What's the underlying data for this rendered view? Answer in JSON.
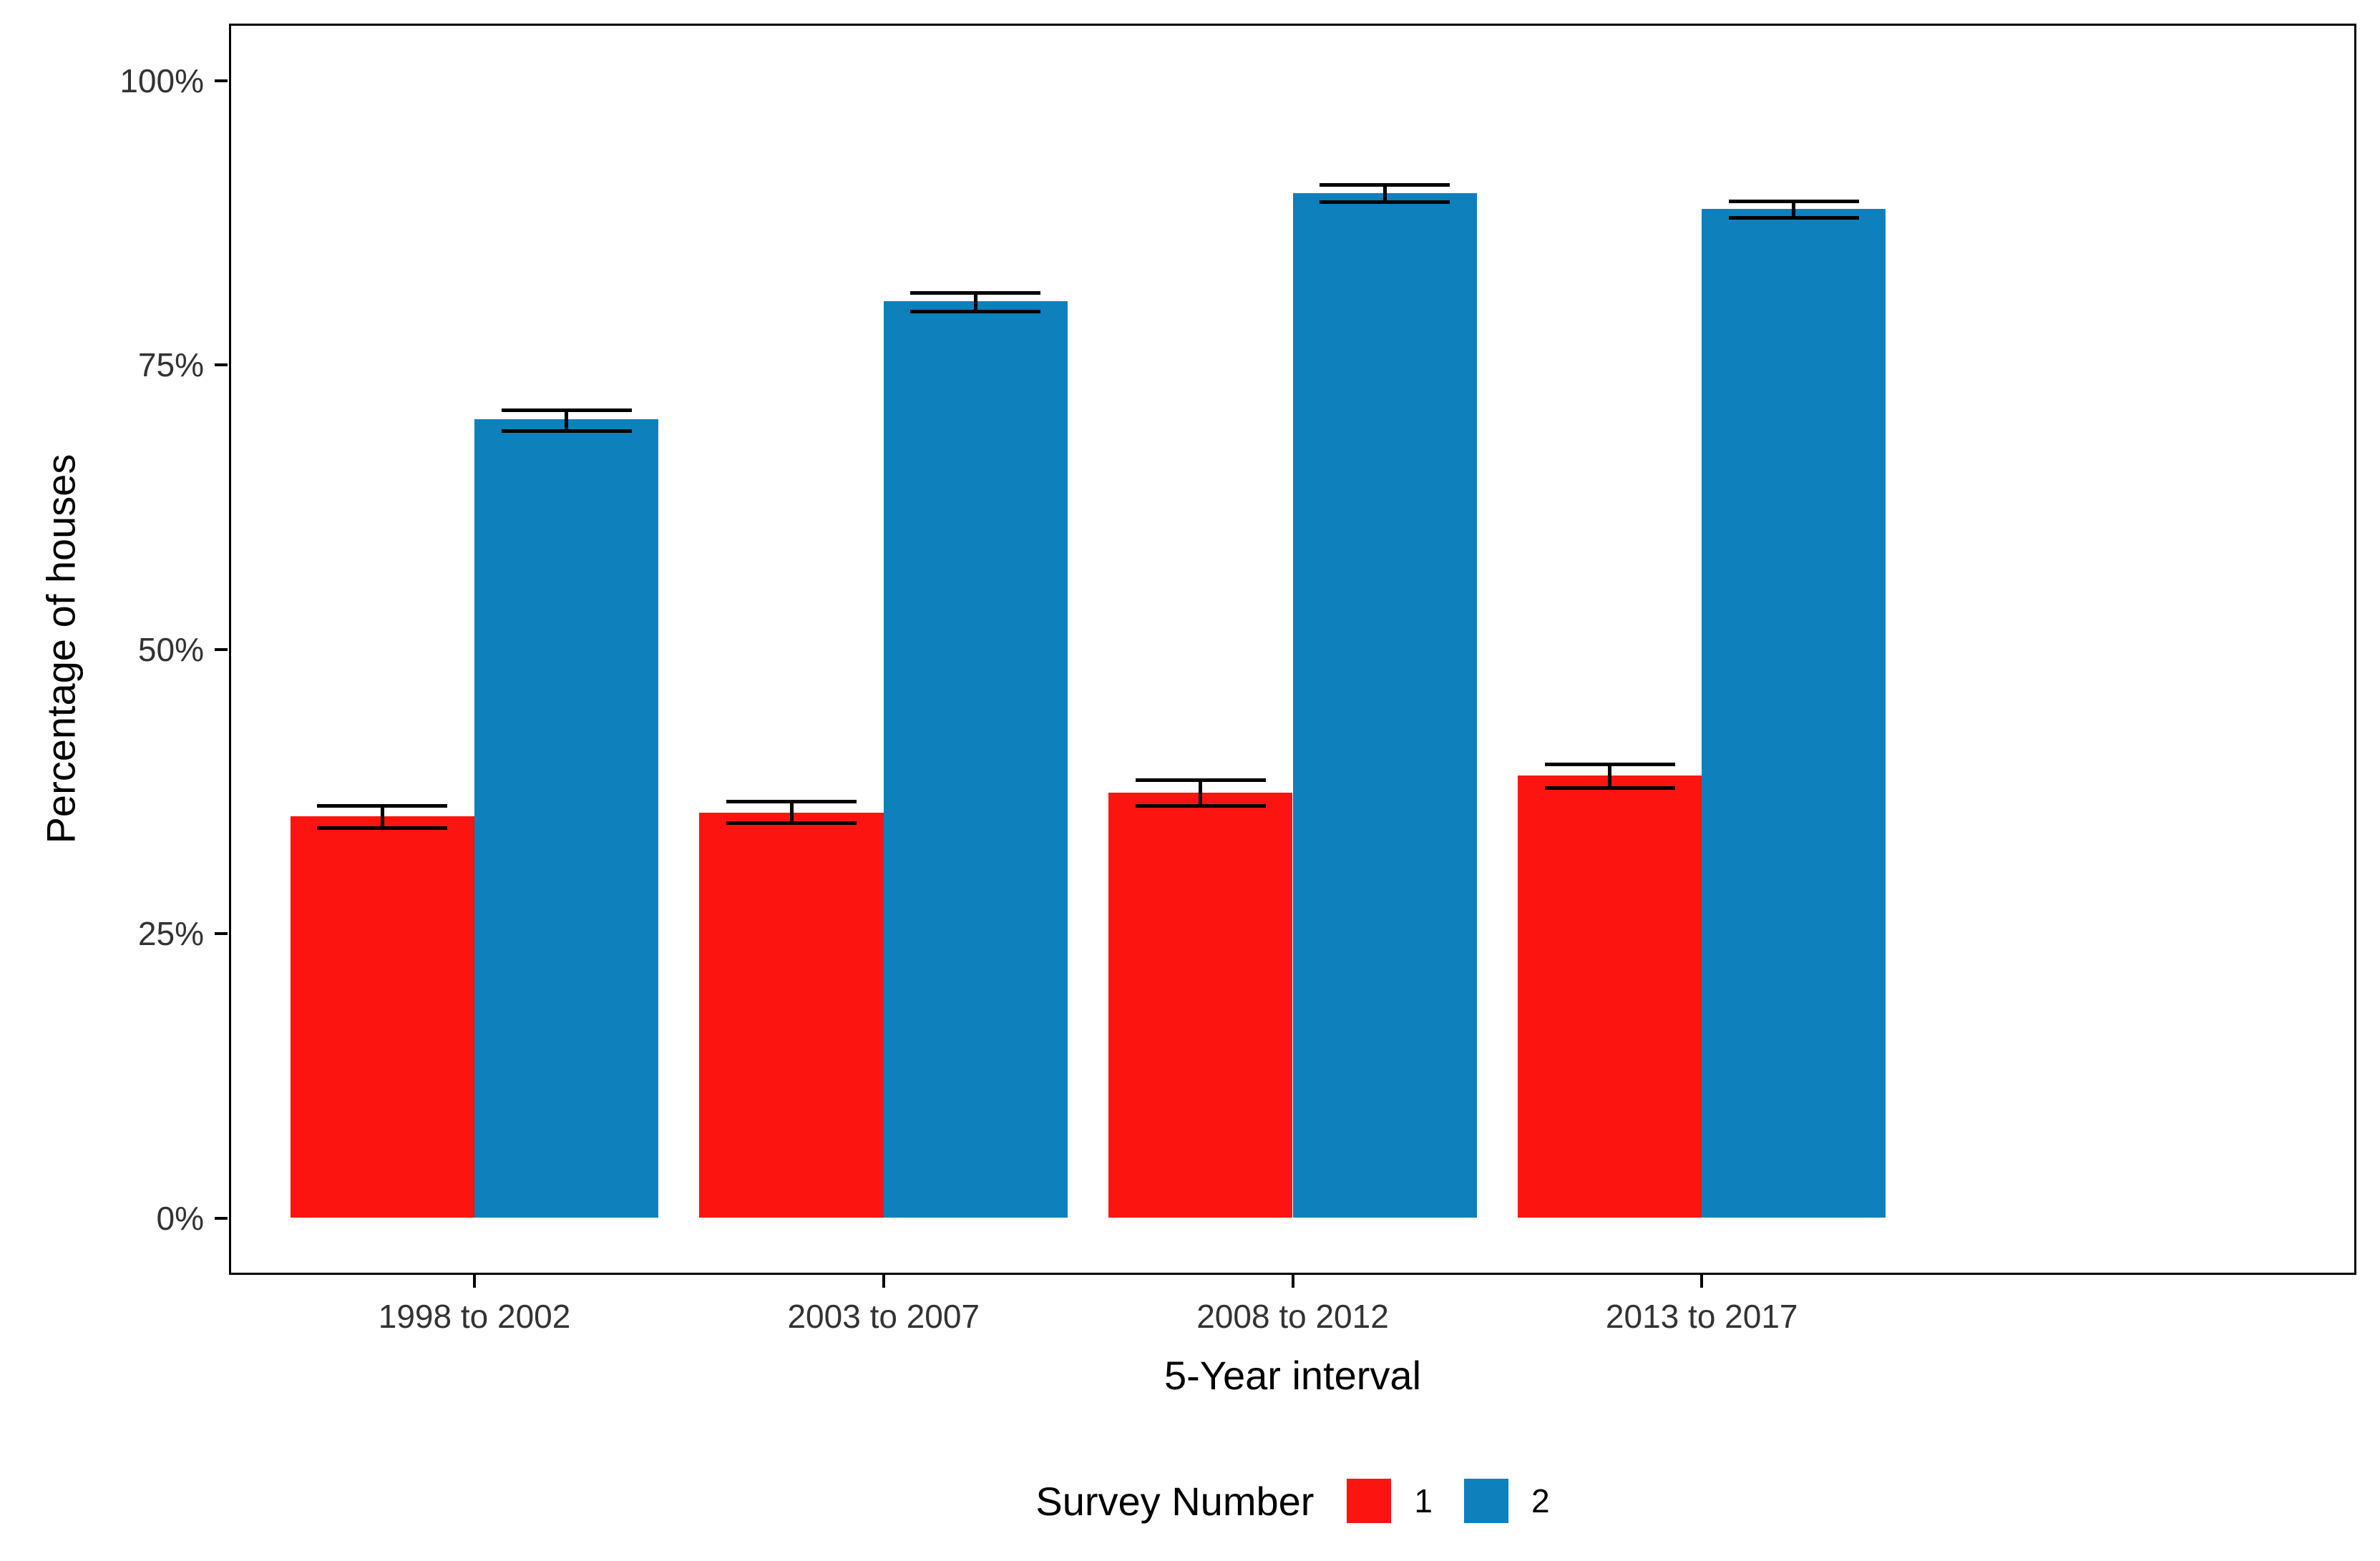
{
  "chart_data": {
    "type": "bar",
    "title": "",
    "xlabel": "5-Year interval",
    "ylabel": "Percentage of houses",
    "categories": [
      "1998 to 2002",
      "2003 to 2007",
      "2008 to 2012",
      "2013 to 2017"
    ],
    "series": [
      {
        "name": "1",
        "color": "#FC1410",
        "values": [
          35.3,
          35.6,
          37.4,
          38.9
        ],
        "error_low": [
          34.3,
          34.7,
          36.2,
          37.8
        ],
        "error_high": [
          36.2,
          36.6,
          38.5,
          39.9
        ]
      },
      {
        "name": "2",
        "color": "#0E80BC",
        "values": [
          70.2,
          80.6,
          90.1,
          88.7
        ],
        "error_low": [
          69.2,
          79.7,
          89.3,
          87.9
        ],
        "error_high": [
          71.0,
          81.3,
          90.8,
          89.4
        ]
      }
    ],
    "y_ticks": [
      "0%",
      "25%",
      "50%",
      "75%",
      "100%"
    ],
    "y_tick_values": [
      0,
      25,
      50,
      75,
      100
    ],
    "ylim": [
      0,
      100
    ],
    "y_expansion_pct": 5,
    "grid": "off",
    "error_bars": true,
    "legend": {
      "title": "Survey Number",
      "position": "bottom",
      "entries": [
        "1",
        "2"
      ]
    },
    "panel_border_color": "#000000",
    "background_color": "#FFFFFF",
    "tick_label_color": "#333333"
  }
}
